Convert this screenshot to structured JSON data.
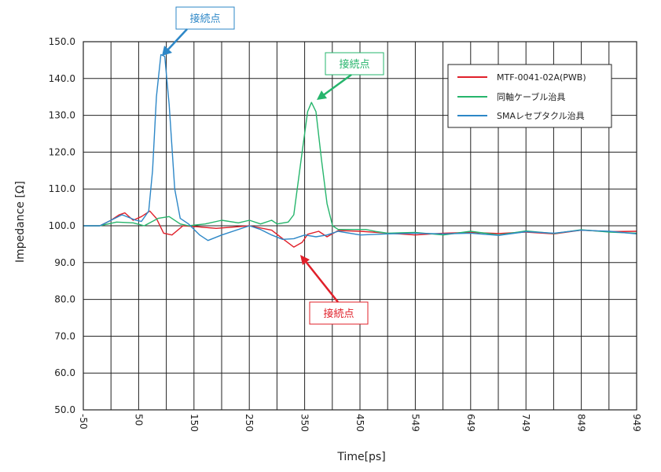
{
  "chart_data": {
    "type": "line",
    "xlabel": "Time[ps]",
    "ylabel": "Impedance [Ω]",
    "x_tick_labels": [
      "-50",
      "50",
      "150",
      "250",
      "350",
      "450",
      "549",
      "649",
      "749",
      "849",
      "949"
    ],
    "y_tick_labels": [
      "50.0",
      "60.0",
      "70.0",
      "80.0",
      "90.0",
      "100.0",
      "110.0",
      "120.0",
      "130.0",
      "140.0",
      "150.0"
    ],
    "xlim": [
      -50,
      949
    ],
    "ylim": [
      50,
      150
    ],
    "grid": true,
    "legend_position": "top-right",
    "series": [
      {
        "name": "MTF-0041-02A(PWB)",
        "color": "#e0202a",
        "points": [
          [
            -50,
            100
          ],
          [
            -20,
            100
          ],
          [
            0,
            101.5
          ],
          [
            15,
            103
          ],
          [
            25,
            103.5
          ],
          [
            40,
            101.5
          ],
          [
            55,
            102.5
          ],
          [
            70,
            104
          ],
          [
            82,
            102
          ],
          [
            95,
            98
          ],
          [
            110,
            97.5
          ],
          [
            130,
            100
          ],
          [
            150,
            99.8
          ],
          [
            190,
            99.3
          ],
          [
            250,
            100
          ],
          [
            290,
            98.8
          ],
          [
            310,
            96.5
          ],
          [
            330,
            94.2
          ],
          [
            345,
            95.5
          ],
          [
            355,
            97.7
          ],
          [
            375,
            98.5
          ],
          [
            390,
            97
          ],
          [
            410,
            98.7
          ],
          [
            450,
            98.5
          ],
          [
            500,
            98
          ],
          [
            549,
            97.5
          ],
          [
            600,
            98
          ],
          [
            649,
            98.2
          ],
          [
            700,
            97.9
          ],
          [
            749,
            98.3
          ],
          [
            800,
            97.8
          ],
          [
            849,
            98.8
          ],
          [
            900,
            98.4
          ],
          [
            949,
            98.5
          ]
        ]
      },
      {
        "name": "同軸ケーブル治具",
        "color": "#26b56c",
        "points": [
          [
            -50,
            100
          ],
          [
            -20,
            100
          ],
          [
            10,
            101
          ],
          [
            40,
            100.8
          ],
          [
            60,
            100
          ],
          [
            85,
            102
          ],
          [
            105,
            102.5
          ],
          [
            125,
            100.5
          ],
          [
            140,
            100
          ],
          [
            170,
            100.5
          ],
          [
            200,
            101.5
          ],
          [
            230,
            100.8
          ],
          [
            250,
            101.5
          ],
          [
            270,
            100.5
          ],
          [
            290,
            101.5
          ],
          [
            300,
            100.5
          ],
          [
            320,
            101
          ],
          [
            330,
            103
          ],
          [
            345,
            120
          ],
          [
            355,
            131
          ],
          [
            362,
            133.5
          ],
          [
            370,
            131
          ],
          [
            380,
            118
          ],
          [
            390,
            106
          ],
          [
            400,
            100
          ],
          [
            410,
            99
          ],
          [
            430,
            99
          ],
          [
            460,
            99
          ],
          [
            480,
            98.4
          ],
          [
            500,
            98
          ],
          [
            549,
            98.2
          ],
          [
            600,
            97.5
          ],
          [
            649,
            98.5
          ],
          [
            700,
            97.5
          ],
          [
            749,
            98.6
          ],
          [
            800,
            97.9
          ],
          [
            849,
            98.9
          ],
          [
            900,
            98.3
          ],
          [
            949,
            98
          ]
        ]
      },
      {
        "name": "SMAレセプタクル治具",
        "color": "#2d87c7",
        "points": [
          [
            -50,
            100
          ],
          [
            -20,
            100
          ],
          [
            0,
            101.5
          ],
          [
            20,
            103
          ],
          [
            45,
            101.5
          ],
          [
            55,
            101.2
          ],
          [
            68,
            104
          ],
          [
            75,
            115
          ],
          [
            82,
            135
          ],
          [
            90,
            146.5
          ],
          [
            97,
            146
          ],
          [
            105,
            133
          ],
          [
            115,
            110
          ],
          [
            125,
            102
          ],
          [
            140,
            100.5
          ],
          [
            160,
            97.5
          ],
          [
            175,
            96
          ],
          [
            200,
            97.5
          ],
          [
            250,
            100
          ],
          [
            270,
            99
          ],
          [
            290,
            97.5
          ],
          [
            310,
            96.3
          ],
          [
            330,
            96.5
          ],
          [
            350,
            97.5
          ],
          [
            370,
            97
          ],
          [
            390,
            97.5
          ],
          [
            410,
            98.5
          ],
          [
            450,
            97.5
          ],
          [
            500,
            97.8
          ],
          [
            549,
            98
          ],
          [
            600,
            97.8
          ],
          [
            649,
            98
          ],
          [
            700,
            97.4
          ],
          [
            749,
            98.4
          ],
          [
            800,
            98
          ],
          [
            849,
            98.8
          ],
          [
            900,
            98.5
          ],
          [
            949,
            97.8
          ]
        ]
      }
    ],
    "annotations": [
      {
        "text": "接続点",
        "color": "#2d87c7"
      },
      {
        "text": "接続点",
        "color": "#26b56c"
      },
      {
        "text": "接続点",
        "color": "#e0202a"
      }
    ]
  }
}
